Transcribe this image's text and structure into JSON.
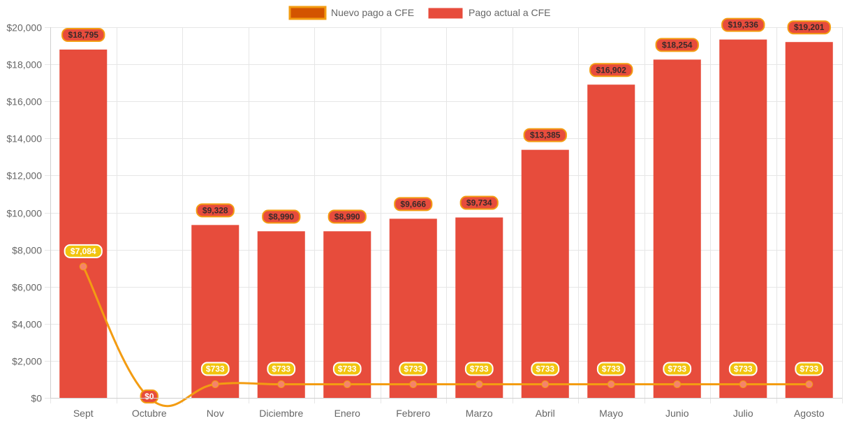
{
  "chart_data": {
    "type": "bar",
    "categories": [
      "Sept",
      "Octubre",
      "Nov",
      "Diciembre",
      "Enero",
      "Febrero",
      "Marzo",
      "Abril",
      "Mayo",
      "Junio",
      "Julio",
      "Agosto"
    ],
    "series": [
      {
        "name": "Nuevo pago a CFE",
        "type": "line",
        "color": "#f39c12",
        "values": [
          7084,
          0,
          733,
          733,
          733,
          733,
          733,
          733,
          733,
          733,
          733,
          733
        ],
        "labels": [
          "$7,084",
          "$0",
          "$733",
          "$733",
          "$733",
          "$733",
          "$733",
          "$733",
          "$733",
          "$733",
          "$733",
          "$733"
        ]
      },
      {
        "name": "Pago actual a CFE",
        "type": "bar",
        "color": "#e74c3c",
        "values": [
          18795,
          0,
          9328,
          8990,
          8990,
          9666,
          9734,
          13385,
          16902,
          18254,
          19336,
          19201
        ],
        "labels": [
          "$18,795",
          "",
          "$9,328",
          "$8,990",
          "$8,990",
          "$9,666",
          "$9,734",
          "$13,385",
          "$16,902",
          "$18,254",
          "$19,336",
          "$19,201"
        ]
      }
    ],
    "y_ticks": [
      "$0",
      "$2,000",
      "$4,000",
      "$6,000",
      "$8,000",
      "$10,000",
      "$12,000",
      "$14,000",
      "$16,000",
      "$18,000",
      "$20,000"
    ],
    "ylim": [
      0,
      20000
    ],
    "title": "",
    "xlabel": "",
    "ylabel": "",
    "grid": true,
    "legend_position": "top"
  },
  "colors": {
    "line": "#f39c12",
    "line_legend_fill": "#d35400",
    "bar": "#e74c3c",
    "line_label_bg": "#f1c40f",
    "grid": "#e6e6e6",
    "tick_text": "#666666"
  }
}
